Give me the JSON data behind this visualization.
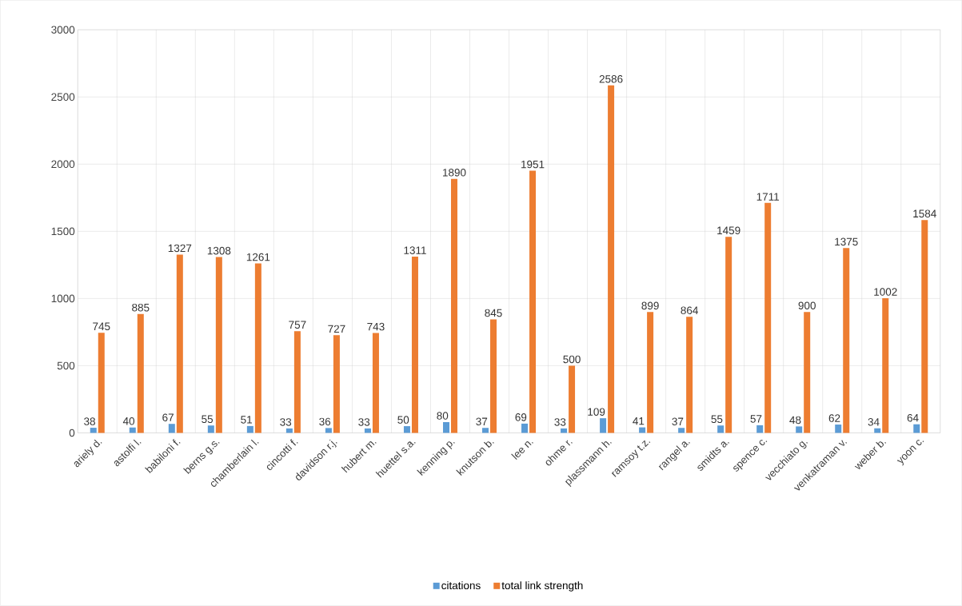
{
  "chart_data": {
    "type": "bar",
    "categories": [
      "ariely d.",
      "astolfi l.",
      "babiloni f.",
      "berns g.s.",
      "chamberlain l.",
      "cincotti f.",
      "davidson r.j.",
      "hubert m.",
      "huettel s.a.",
      "kenning p.",
      "knutson b.",
      "lee n.",
      "ohme r.",
      "plassmann h.",
      "ramsoy t.z.",
      "rangel a.",
      "smidts a.",
      "spence c.",
      "vecchiato g.",
      "venkatraman v.",
      "weber b.",
      "yoon c."
    ],
    "series": [
      {
        "name": "citations",
        "color": "#5b9bd5",
        "values": [
          38,
          40,
          67,
          55,
          51,
          33,
          36,
          33,
          50,
          80,
          37,
          69,
          33,
          109,
          41,
          37,
          55,
          57,
          48,
          62,
          34,
          64
        ]
      },
      {
        "name": "total link strength",
        "color": "#ed7d31",
        "values": [
          745,
          885,
          1327,
          1308,
          1261,
          757,
          727,
          743,
          1311,
          1890,
          845,
          1951,
          500,
          2586,
          899,
          864,
          1459,
          1711,
          900,
          1375,
          1002,
          1584
        ]
      }
    ],
    "ylim": [
      0,
      3000
    ],
    "yticks": [
      0,
      500,
      1000,
      1500,
      2000,
      2500,
      3000
    ],
    "grid": true,
    "legend": "bottom",
    "data_labels": true
  }
}
